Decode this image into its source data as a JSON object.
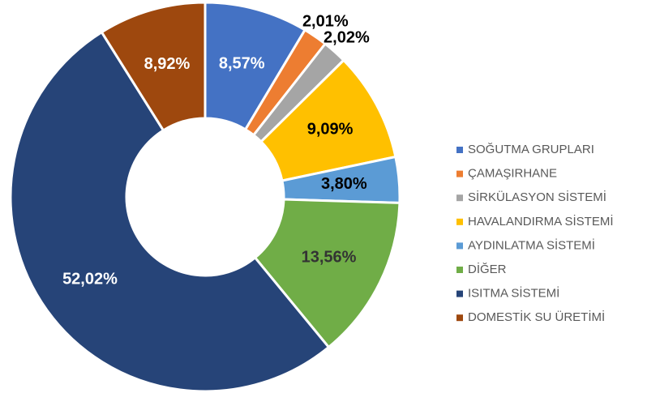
{
  "chart_data": {
    "type": "donut",
    "categories": [
      "SOĞUTMA GRUPLARI",
      "ÇAMAŞIRHANE",
      "SİRKÜLASYON SİSTEMİ",
      "HAVALANDIRMA SİSTEMİ",
      "AYDINLATMA SİSTEMİ",
      "DİĞER",
      "ISITMA SİSTEMİ",
      "DOMESTİK SU ÜRETİMİ"
    ],
    "values": [
      8.57,
      2.01,
      2.02,
      9.09,
      3.8,
      13.56,
      52.02,
      8.92
    ],
    "value_labels": [
      "8,57%",
      "2,01%",
      "2,02%",
      "9,09%",
      "3,80%",
      "13,56%",
      "52,02%",
      "8,92%"
    ],
    "colors": [
      "#4472c4",
      "#ed7d31",
      "#a5a5a5",
      "#ffc000",
      "#5b9bd5",
      "#70ad47",
      "#264478",
      "#9e480e"
    ],
    "legend": "right"
  }
}
